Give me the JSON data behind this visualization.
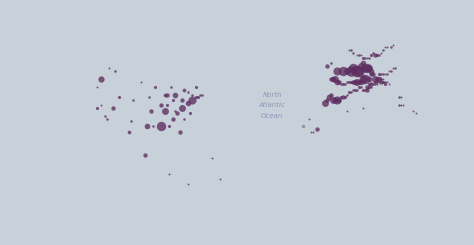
{
  "water_color": "#c8d0da",
  "land_color": "#e8eaed",
  "border_color": "#b8bec8",
  "marker_color": "#5c2d5e",
  "marker_alpha": 0.78,
  "ocean_text_color": "#8a9ab5",
  "fig_width": 4.74,
  "fig_height": 2.45,
  "xlim": [
    -170,
    65
  ],
  "ylim": [
    -15,
    78
  ],
  "points": [
    [
      -120,
      48,
      10
    ],
    [
      -113,
      51,
      4
    ],
    [
      -114,
      37,
      7
    ],
    [
      -122,
      37,
      5
    ],
    [
      -118,
      34,
      4
    ],
    [
      -122,
      45,
      3
    ],
    [
      -111,
      41,
      5
    ],
    [
      -104,
      40,
      4
    ],
    [
      -96,
      41,
      4
    ],
    [
      -87,
      42,
      7
    ],
    [
      -83,
      42,
      9
    ],
    [
      -77,
      43,
      4
    ],
    [
      -73,
      45,
      5
    ],
    [
      -70,
      42,
      4
    ],
    [
      -75,
      40,
      13
    ],
    [
      -80,
      37,
      11
    ],
    [
      -82,
      35,
      7
    ],
    [
      -88,
      36,
      11
    ],
    [
      -90,
      30,
      15
    ],
    [
      -97,
      30,
      9
    ],
    [
      -95,
      36,
      7
    ],
    [
      -93,
      45,
      5
    ],
    [
      -86,
      30,
      5
    ],
    [
      -84,
      33,
      7
    ],
    [
      -81,
      28,
      7
    ],
    [
      -76,
      35,
      5
    ],
    [
      -72,
      41,
      5
    ],
    [
      -79,
      44,
      6
    ],
    [
      -120,
      38,
      3
    ],
    [
      -105,
      32,
      4
    ],
    [
      -117,
      33,
      4
    ],
    [
      -85,
      45,
      4
    ],
    [
      -71,
      42,
      4
    ],
    [
      -87,
      38,
      5
    ],
    [
      -84,
      40,
      5
    ],
    [
      -80,
      40,
      7
    ],
    [
      -77,
      39,
      9
    ],
    [
      -75,
      42,
      4
    ],
    [
      -73,
      41,
      5
    ],
    [
      -88,
      42,
      6
    ],
    [
      -90,
      38,
      7
    ],
    [
      -116,
      52,
      3
    ],
    [
      -79,
      33,
      4
    ],
    [
      -83,
      36,
      4
    ],
    [
      -106,
      28,
      6
    ],
    [
      -100,
      47,
      3
    ],
    [
      -94,
      30,
      4
    ],
    [
      -98,
      19,
      7
    ],
    [
      -86,
      12,
      3
    ],
    [
      -77,
      8,
      3
    ],
    [
      -65,
      18,
      3
    ],
    [
      -61,
      10,
      3
    ],
    [
      -9,
      39,
      11
    ],
    [
      -8,
      40,
      7
    ],
    [
      -7,
      41,
      9
    ],
    [
      -6,
      42,
      7
    ],
    [
      -5,
      40,
      11
    ],
    [
      -4,
      40,
      9
    ],
    [
      -3,
      40,
      13
    ],
    [
      -2,
      40,
      7
    ],
    [
      -1,
      41,
      5
    ],
    [
      0,
      41,
      7
    ],
    [
      1,
      41,
      5
    ],
    [
      2,
      42,
      4
    ],
    [
      3,
      43,
      5
    ],
    [
      4,
      43,
      4
    ],
    [
      5,
      44,
      4
    ],
    [
      6,
      44,
      5
    ],
    [
      7,
      44,
      4
    ],
    [
      8,
      45,
      5
    ],
    [
      9,
      45,
      4
    ],
    [
      10,
      44,
      5
    ],
    [
      11,
      44,
      4
    ],
    [
      12,
      44,
      7
    ],
    [
      13,
      45,
      5
    ],
    [
      14,
      45,
      4
    ],
    [
      -8,
      53,
      7
    ],
    [
      -6,
      54,
      4
    ],
    [
      -3,
      51,
      13
    ],
    [
      0,
      51,
      15
    ],
    [
      2,
      51,
      11
    ],
    [
      4,
      51,
      17
    ],
    [
      5,
      52,
      15
    ],
    [
      7,
      51,
      19
    ],
    [
      8,
      51,
      17
    ],
    [
      9,
      53,
      11
    ],
    [
      10,
      54,
      9
    ],
    [
      11,
      52,
      13
    ],
    [
      12,
      52,
      15
    ],
    [
      13,
      52,
      11
    ],
    [
      14,
      51,
      9
    ],
    [
      15,
      50,
      7
    ],
    [
      16,
      48,
      11
    ],
    [
      17,
      48,
      7
    ],
    [
      18,
      48,
      9
    ],
    [
      19,
      47,
      7
    ],
    [
      20,
      47,
      5
    ],
    [
      21,
      46,
      5
    ],
    [
      14,
      50,
      7
    ],
    [
      13,
      48,
      9
    ],
    [
      11,
      48,
      15
    ],
    [
      10,
      48,
      13
    ],
    [
      9,
      47,
      9
    ],
    [
      8,
      47,
      7
    ],
    [
      7,
      47,
      11
    ],
    [
      6,
      47,
      9
    ],
    [
      5,
      47,
      7
    ],
    [
      4,
      47,
      5
    ],
    [
      3,
      47,
      5
    ],
    [
      2,
      47,
      4
    ],
    [
      1,
      46,
      4
    ],
    [
      0,
      46,
      5
    ],
    [
      -1,
      46,
      4
    ],
    [
      -2,
      47,
      7
    ],
    [
      -3,
      47,
      9
    ],
    [
      -4,
      48,
      11
    ],
    [
      -5,
      48,
      9
    ],
    [
      -6,
      48,
      7
    ],
    [
      15,
      46,
      4
    ],
    [
      16,
      46,
      4
    ],
    [
      17,
      46,
      3
    ],
    [
      18,
      50,
      5
    ],
    [
      19,
      50,
      4
    ],
    [
      20,
      50,
      4
    ],
    [
      21,
      50,
      3
    ],
    [
      22,
      50,
      4
    ],
    [
      23,
      51,
      3
    ],
    [
      24,
      51,
      4
    ],
    [
      25,
      52,
      3
    ],
    [
      26,
      52,
      4
    ],
    [
      14,
      57,
      5
    ],
    [
      15,
      58,
      4
    ],
    [
      16,
      57,
      7
    ],
    [
      17,
      57,
      5
    ],
    [
      18,
      57,
      4
    ],
    [
      19,
      58,
      3
    ],
    [
      20,
      59,
      4
    ],
    [
      21,
      60,
      3
    ],
    [
      22,
      60,
      3
    ],
    [
      24,
      60,
      4
    ],
    [
      25,
      61,
      3
    ],
    [
      10,
      56,
      5
    ],
    [
      11,
      56,
      4
    ],
    [
      12,
      56,
      3
    ],
    [
      13,
      56,
      4
    ],
    [
      9,
      57,
      3
    ],
    [
      8,
      57,
      4
    ],
    [
      7,
      57,
      3
    ],
    [
      5,
      58,
      4
    ],
    [
      4,
      59,
      4
    ],
    [
      3,
      59,
      3
    ],
    [
      12,
      45,
      7
    ],
    [
      13,
      46,
      5
    ],
    [
      14,
      46,
      7
    ],
    [
      16,
      47,
      5
    ],
    [
      17,
      47,
      4
    ],
    [
      18,
      47,
      3
    ],
    [
      19,
      48,
      4
    ],
    [
      20,
      48,
      3
    ],
    [
      21,
      47,
      4
    ],
    [
      22,
      47,
      3
    ],
    [
      23,
      46,
      3
    ],
    [
      28,
      41,
      4
    ],
    [
      29,
      41,
      3
    ],
    [
      36,
      35,
      3
    ],
    [
      28,
      38,
      4
    ],
    [
      29,
      38,
      3
    ],
    [
      30,
      38,
      3
    ],
    [
      -13,
      29,
      7
    ],
    [
      -15,
      28,
      3
    ],
    [
      -16,
      28,
      3
    ],
    [
      -17,
      33,
      3
    ],
    [
      2,
      36,
      3
    ],
    [
      10,
      37,
      3
    ],
    [
      35,
      36,
      3
    ]
  ]
}
